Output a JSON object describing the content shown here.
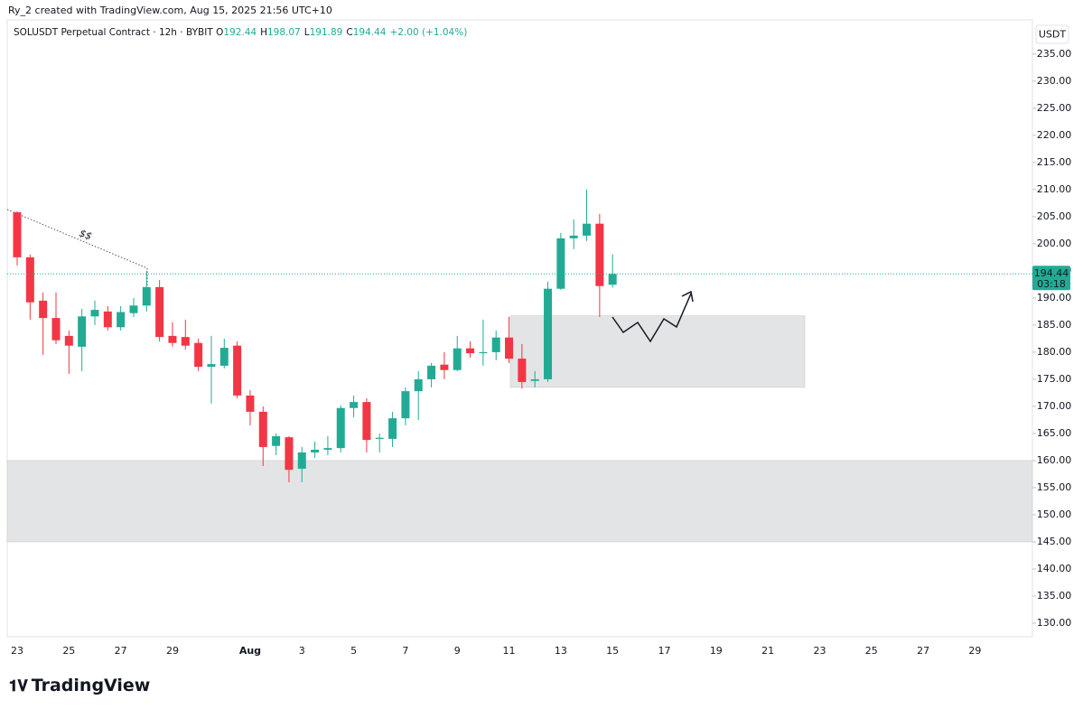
{
  "created_by": "Ry_2 created with TradingView.com, Aug 15, 2025 21:56 UTC+10",
  "logo": "TradingView",
  "chart_data": {
    "type": "candlestick",
    "title": "SOLUSDT Perpetual Contract · 12h · BYBIT",
    "ohlc_legend": [
      {
        "label": "O",
        "value": "192.44"
      },
      {
        "label": "H",
        "value": "198.07"
      },
      {
        "label": "L",
        "value": "191.89"
      },
      {
        "label": "C",
        "value": "194.44"
      }
    ],
    "change": "+2.00 (+1.04%)",
    "currency": "USDT",
    "last_price_label": "194.44",
    "countdown": "03:18",
    "annotation": "$$",
    "up_color": "#22ab94",
    "down_color": "#f23645",
    "zones": [
      {
        "low": 145,
        "high": 160
      },
      {
        "low": 173.5,
        "high": 186.7
      }
    ],
    "categories": [
      "23",
      null,
      null,
      null,
      "25",
      null,
      null,
      null,
      "27",
      null,
      null,
      null,
      "29",
      null,
      null,
      null,
      null,
      null,
      "Aug",
      null,
      null,
      null,
      "3",
      null,
      null,
      null,
      "5",
      null,
      null,
      null,
      "7",
      null,
      null,
      null,
      "9",
      null,
      null,
      null,
      "11",
      null,
      null,
      null,
      "13",
      null,
      null,
      null,
      "15",
      null,
      null,
      null,
      "17",
      null,
      null,
      null,
      "19",
      null,
      null,
      null,
      "21",
      null,
      null,
      null,
      "23",
      null,
      null,
      null,
      "25",
      null,
      null,
      null,
      "27",
      null,
      null,
      null,
      "29"
    ],
    "open": [
      205.8,
      197.5,
      189.5,
      186.3,
      183,
      181,
      186.6,
      187.5,
      184.6,
      187.2,
      188.6,
      192,
      183,
      182.8,
      181.7,
      177.3,
      177.5,
      181.2,
      172,
      169,
      162.7,
      164.3,
      158.5,
      161.5,
      162,
      162.3,
      169.7,
      170.8,
      164,
      164,
      167.8,
      172.8,
      175,
      177.7,
      176.7,
      180.7,
      179.8,
      180,
      182.7,
      178.8,
      174.7,
      175,
      191.7,
      201,
      201.5,
      203.7,
      192.44,
      null,
      null,
      null,
      null,
      null,
      null,
      null,
      null,
      null,
      null,
      null,
      null,
      null,
      null,
      null,
      null,
      null,
      null,
      null,
      null,
      null,
      null,
      null,
      null,
      null,
      null,
      null,
      null
    ],
    "high": [
      206,
      198,
      191,
      191,
      184,
      188,
      189.5,
      188.5,
      188.5,
      190,
      195,
      193.3,
      185.5,
      186,
      182.5,
      183,
      182.5,
      182,
      173,
      170,
      165,
      164.5,
      162.5,
      163.5,
      164.5,
      170.2,
      172,
      171.5,
      165,
      169,
      173.5,
      176.5,
      178,
      180,
      183,
      182,
      186,
      184,
      186.5,
      181.5,
      176.5,
      193,
      202,
      204.5,
      210,
      205.5,
      198.07,
      null,
      null,
      null,
      null,
      null,
      null,
      null,
      null,
      null,
      null,
      null,
      null,
      null,
      null,
      null,
      null,
      null,
      null,
      null,
      null,
      null,
      null,
      null,
      null,
      null,
      null,
      null,
      null
    ],
    "low": [
      196,
      186,
      179.5,
      181.5,
      176,
      176.5,
      185,
      184,
      184,
      186.5,
      187.5,
      182,
      181,
      180.5,
      176.5,
      170.5,
      177,
      171.5,
      166.5,
      159,
      161,
      156,
      156,
      160.5,
      161,
      161.5,
      168,
      161.5,
      161.5,
      162.5,
      166.5,
      167.5,
      173.5,
      175,
      176.5,
      179,
      177.5,
      178.5,
      178,
      173.3,
      173.5,
      174.5,
      191.5,
      199,
      200.5,
      186.5,
      191.89,
      null,
      null,
      null,
      null,
      null,
      null,
      null,
      null,
      null,
      null,
      null,
      null,
      null,
      null,
      null,
      null,
      null,
      null,
      null,
      null,
      null,
      null,
      null,
      null,
      null,
      null,
      null,
      null
    ],
    "close": [
      197.5,
      189.2,
      186.3,
      182.2,
      181.2,
      186.6,
      187.8,
      184.6,
      187.4,
      188.6,
      192,
      182.8,
      181.7,
      181.2,
      177.3,
      177.8,
      180.8,
      172,
      169,
      162.5,
      164.5,
      158.3,
      161.5,
      162,
      162.3,
      169.7,
      170.8,
      163.8,
      164.2,
      167.8,
      172.8,
      175,
      177.5,
      176.7,
      180.7,
      179.8,
      180,
      182.7,
      178.8,
      174.5,
      175,
      191.7,
      201,
      201.5,
      203.7,
      192.2,
      194.44,
      null,
      null,
      null,
      null,
      null,
      null,
      null,
      null,
      null,
      null,
      null,
      null,
      null,
      null,
      null,
      null,
      null,
      null,
      null,
      null,
      null,
      null,
      null,
      null,
      null,
      null,
      null,
      null
    ],
    "ylim": [
      127.5,
      241.3
    ],
    "yticks": [
      {
        "value": 130,
        "label": "130.00"
      },
      {
        "value": 135,
        "label": "135.00"
      },
      {
        "value": 140,
        "label": "140.00"
      },
      {
        "value": 145,
        "label": "145.00"
      },
      {
        "value": 150,
        "label": "150.00"
      },
      {
        "value": 155,
        "label": "155.00"
      },
      {
        "value": 160,
        "label": "160.00"
      },
      {
        "value": 165,
        "label": "165.00"
      },
      {
        "value": 170,
        "label": "170.00"
      },
      {
        "value": 175,
        "label": "175.00"
      },
      {
        "value": 180,
        "label": "180.00"
      },
      {
        "value": 185,
        "label": "185.00"
      },
      {
        "value": 190,
        "label": "190.00"
      },
      {
        "value": 195,
        "label": "195.00"
      },
      {
        "value": 200,
        "label": "200.00"
      },
      {
        "value": 205,
        "label": "205.00"
      },
      {
        "value": 210,
        "label": "210.00"
      },
      {
        "value": 215,
        "label": "215.00"
      },
      {
        "value": 220,
        "label": "220.00"
      },
      {
        "value": 225,
        "label": "225.00"
      },
      {
        "value": 230,
        "label": "230.00"
      },
      {
        "value": 235,
        "label": "235.00"
      }
    ],
    "grid": false
  }
}
